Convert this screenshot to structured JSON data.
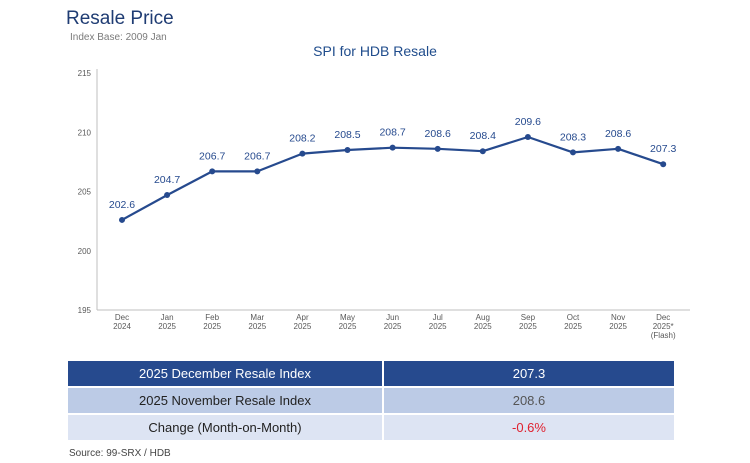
{
  "header": {
    "title": "Resale Price",
    "subtitle": "Index Base: 2009 Jan"
  },
  "chart_data": {
    "type": "line",
    "title": "SPI for HDB Resale",
    "categories": [
      [
        "Dec",
        "2024"
      ],
      [
        "Jan",
        "2025"
      ],
      [
        "Feb",
        "2025"
      ],
      [
        "Mar",
        "2025"
      ],
      [
        "Apr",
        "2025"
      ],
      [
        "May",
        "2025"
      ],
      [
        "Jun",
        "2025"
      ],
      [
        "Jul",
        "2025"
      ],
      [
        "Aug",
        "2025"
      ],
      [
        "Sep",
        "2025"
      ],
      [
        "Oct",
        "2025"
      ],
      [
        "Nov",
        "2025"
      ],
      [
        "Dec",
        "2025*",
        "(Flash)"
      ]
    ],
    "values": [
      202.6,
      204.7,
      206.7,
      206.7,
      208.2,
      208.5,
      208.7,
      208.6,
      208.4,
      209.6,
      208.3,
      208.6,
      207.3
    ],
    "data_labels": [
      "202.6",
      "204.7",
      "206.7",
      "206.7",
      "208.2",
      "208.5",
      "208.7",
      "208.6",
      "208.4",
      "209.6",
      "208.3",
      "208.6",
      "207.3"
    ],
    "ylim": [
      195,
      215
    ],
    "yticks": [
      195,
      200,
      205,
      210,
      215
    ],
    "grid": false,
    "line_color": "#264a8e",
    "label_color": "#264a8e"
  },
  "table": {
    "rows": [
      {
        "label": "2025 December Resale Index",
        "value": "207.3"
      },
      {
        "label": "2025 November Resale Index",
        "value": "208.6"
      },
      {
        "label": "Change (Month-on-Month)",
        "value": "-0.6%"
      }
    ]
  },
  "footer": {
    "source": "Source: 99-SRX / HDB"
  }
}
